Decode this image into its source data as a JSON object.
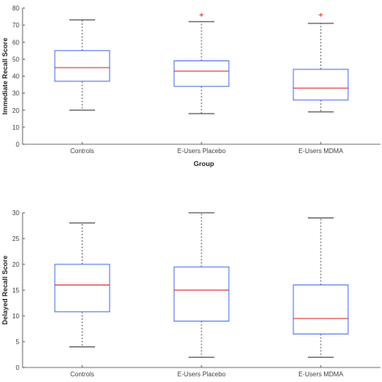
{
  "chart_data": [
    {
      "type": "box",
      "xlabel": "Group",
      "ylabel": "Immediate Recall Score",
      "ylim": [
        0,
        80
      ],
      "yticks": [
        0,
        10,
        20,
        30,
        40,
        50,
        60,
        70,
        80
      ],
      "categories": [
        "Controls",
        "E-Users Placebo",
        "E-Users MDMA"
      ],
      "boxes": [
        {
          "whisker_low": 20,
          "q1": 37,
          "median": 45,
          "q3": 55,
          "whisker_high": 73,
          "outliers": []
        },
        {
          "whisker_low": 18,
          "q1": 34,
          "median": 43,
          "q3": 49,
          "whisker_high": 72,
          "outliers": [
            76
          ]
        },
        {
          "whisker_low": 19,
          "q1": 26,
          "median": 33,
          "q3": 44,
          "whisker_high": 71,
          "outliers": [
            76
          ]
        }
      ],
      "colors": {
        "box": "#4a6fe3",
        "median": "#e0403a",
        "whisker": "#333333",
        "outlier": "#e0403a"
      }
    },
    {
      "type": "box",
      "xlabel": "",
      "ylabel": "Delayed Recall Score",
      "ylim": [
        0,
        30
      ],
      "yticks": [
        0,
        5,
        10,
        15,
        20,
        25,
        30
      ],
      "categories": [
        "Controls",
        "E-Users Placebo",
        "E-Users MDMA"
      ],
      "boxes": [
        {
          "whisker_low": 4,
          "q1": 10.8,
          "median": 16,
          "q3": 20,
          "whisker_high": 28,
          "outliers": []
        },
        {
          "whisker_low": 2,
          "q1": 9,
          "median": 15,
          "q3": 19.5,
          "whisker_high": 30,
          "outliers": []
        },
        {
          "whisker_low": 2,
          "q1": 6.5,
          "median": 9.5,
          "q3": 16,
          "whisker_high": 29,
          "outliers": []
        }
      ],
      "colors": {
        "box": "#4a6fe3",
        "median": "#e0403a",
        "whisker": "#333333",
        "outlier": "#e0403a"
      }
    }
  ]
}
